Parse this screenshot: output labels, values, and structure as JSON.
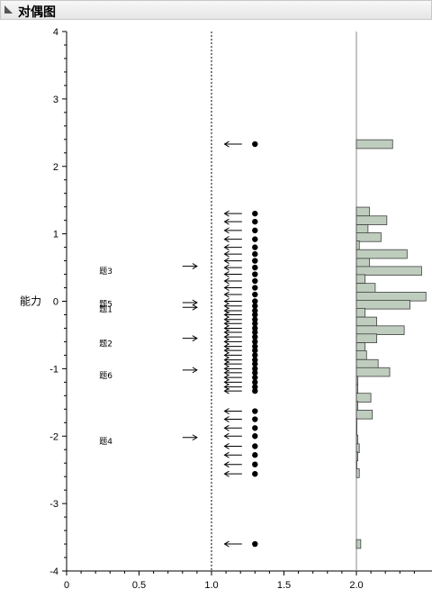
{
  "panel": {
    "title": "对偶图"
  },
  "chart_data": {
    "type": "scatter",
    "title": "对偶图",
    "ylabel": "能力",
    "xlabel": "",
    "xlim": [
      0,
      2.55
    ],
    "ylim": [
      -4,
      4
    ],
    "xticks": [
      "0",
      "0.5",
      "1.0",
      "1.5",
      "2.0"
    ],
    "yticks": [
      "-4",
      "-3",
      "-2",
      "-1",
      "0",
      "1",
      "2",
      "3",
      "4"
    ],
    "reference_line_x": 1.0,
    "items": [
      {
        "label": "题3",
        "x": 0.3,
        "y": 0.45
      },
      {
        "label": "题5",
        "x": 0.3,
        "y": -0.04
      },
      {
        "label": "题1",
        "x": 0.3,
        "y": -0.12
      },
      {
        "label": "题2",
        "x": 0.3,
        "y": -0.63
      },
      {
        "label": "题6",
        "x": 0.3,
        "y": -1.1
      },
      {
        "label": "题4",
        "x": 0.3,
        "y": -2.08
      }
    ],
    "item_arrows_y": [
      0.52,
      -0.02,
      -0.09,
      -0.55,
      -1.02,
      -2.02
    ],
    "person_points_x": 1.3,
    "person_points_y": [
      2.33,
      1.3,
      1.18,
      1.05,
      0.92,
      0.8,
      0.7,
      0.6,
      0.5,
      0.4,
      0.3,
      0.2,
      0.1,
      0.0,
      -0.07,
      -0.14,
      -0.2,
      -0.27,
      -0.33,
      -0.4,
      -0.46,
      -0.53,
      -0.6,
      -0.67,
      -0.73,
      -0.8,
      -0.87,
      -0.93,
      -1.0,
      -1.06,
      -1.13,
      -1.2,
      -1.27,
      -1.33,
      -1.63,
      -1.75,
      -1.88,
      -2.0,
      -2.15,
      -2.28,
      -2.42,
      -2.56,
      -3.6
    ],
    "histogram": {
      "bin_centers": [
        2.33,
        1.33,
        1.2,
        1.07,
        0.95,
        0.83,
        0.7,
        0.57,
        0.45,
        0.33,
        0.2,
        0.07,
        -0.05,
        -0.17,
        -0.3,
        -0.43,
        -0.55,
        -0.68,
        -0.8,
        -0.93,
        -1.05,
        -1.18,
        -1.3,
        -1.43,
        -1.55,
        -1.68,
        -1.8,
        -1.93,
        -2.05,
        -2.18,
        -2.3,
        -2.43,
        -2.55,
        -3.6
      ],
      "lengths": [
        0.25,
        0.09,
        0.21,
        0.08,
        0.17,
        0.02,
        0.35,
        0.09,
        0.45,
        0.06,
        0.13,
        0.48,
        0.37,
        0.06,
        0.14,
        0.33,
        0.14,
        0.06,
        0.07,
        0.15,
        0.23,
        0.01,
        0.01,
        0.1,
        0.01,
        0.11,
        0.0,
        0.0,
        0.01,
        0.02,
        0.01,
        0.0,
        0.02,
        0.03
      ]
    },
    "colors": {
      "bar_fill": "#bfcdbf",
      "bar_stroke": "#404040",
      "axis": "#000000",
      "reference": "#000000"
    }
  }
}
